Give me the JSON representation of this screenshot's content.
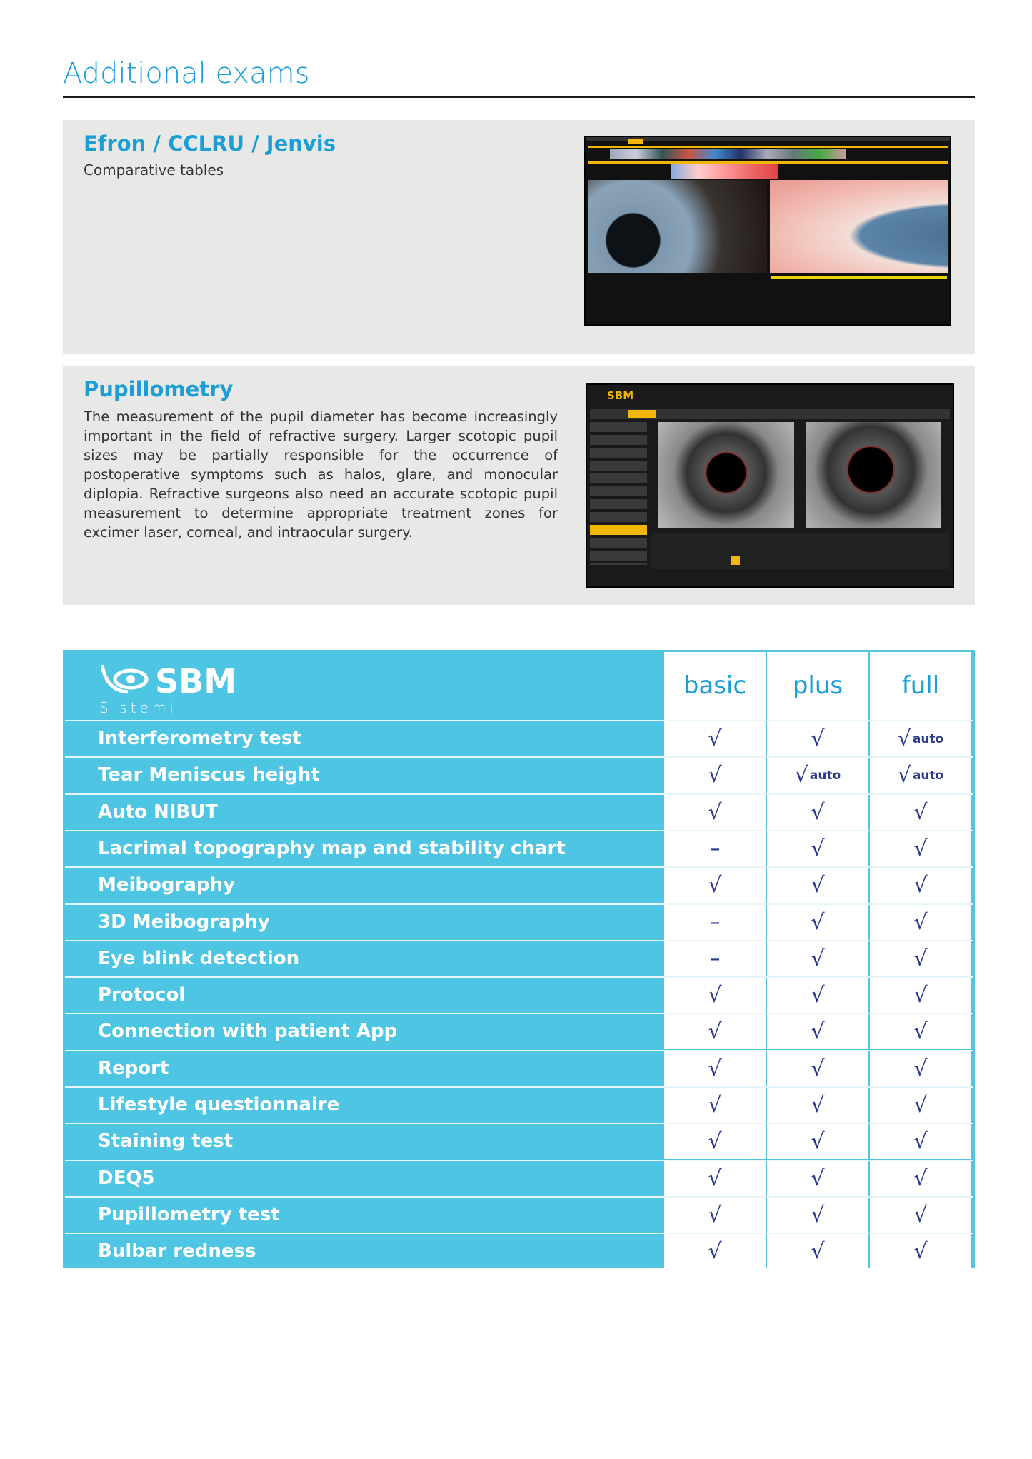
{
  "page_title": "Additional exams",
  "sections": [
    {
      "title": "Efron / CCLRU / Jenvis",
      "subtitle": "Comparative tables"
    },
    {
      "title": "Pupillometry",
      "body": "The measurement of the pupil diameter has become increasingly important in the field of refractive surgery. Larger scotopic pupil sizes may be partially responsible for the occurrence of postoperative symptoms such as halos, glare, and monocular diplopia. Refractive surgeons also need an accurate scotopic pupil measurement to determine appropriate treatment zones for excimer laser, corneal, and intraocular surgery.",
      "screenshot_logo": "SBM"
    }
  ],
  "table": {
    "logo": {
      "name": "SBM",
      "tagline": "Sistemi"
    },
    "plans": [
      "basic",
      "plus",
      "full"
    ],
    "rows": [
      {
        "feature": "Interferometry test",
        "values": [
          "check",
          "check",
          "check auto"
        ]
      },
      {
        "feature": "Tear Meniscus height",
        "values": [
          "check",
          "check auto",
          "check auto"
        ]
      },
      {
        "feature": "Auto NIBUT",
        "values": [
          "check",
          "check",
          "check"
        ]
      },
      {
        "feature": "Lacrimal topography map and stability chart",
        "values": [
          "dash",
          "check",
          "check"
        ]
      },
      {
        "feature": "Meibography",
        "values": [
          "check",
          "check",
          "check"
        ]
      },
      {
        "feature": "3D Meibography",
        "values": [
          "dash",
          "check",
          "check"
        ]
      },
      {
        "feature": "Eye blink detection",
        "values": [
          "dash",
          "check",
          "check"
        ]
      },
      {
        "feature": "Protocol",
        "values": [
          "check",
          "check",
          "check"
        ]
      },
      {
        "feature": "Connection with patient App",
        "values": [
          "check",
          "check",
          "check"
        ]
      },
      {
        "feature": "Report",
        "values": [
          "check",
          "check",
          "check"
        ]
      },
      {
        "feature": "Lifestyle questionnaire",
        "values": [
          "check",
          "check",
          "check"
        ]
      },
      {
        "feature": "Staining test",
        "values": [
          "check",
          "check",
          "check"
        ]
      },
      {
        "feature": "DEQ5",
        "values": [
          "check",
          "check",
          "check"
        ]
      },
      {
        "feature": "Pupillometry test",
        "values": [
          "check",
          "check",
          "check"
        ]
      },
      {
        "feature": "Bulbar redness",
        "values": [
          "check",
          "check",
          "check"
        ]
      }
    ],
    "auto_label": "auto"
  },
  "colors": {
    "accent": "#1b9ed6",
    "table_bg": "#4ec5e2",
    "check": "#2b3a8f",
    "highlight": "#f2b705"
  }
}
